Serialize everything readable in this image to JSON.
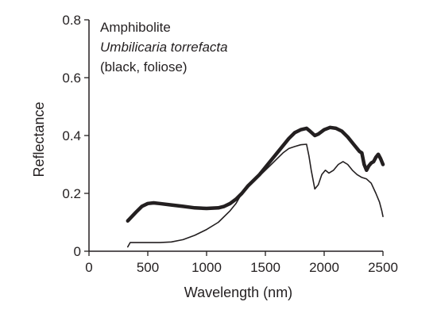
{
  "chart_data": {
    "type": "line",
    "title": "",
    "xlabel": "Wavelength (nm)",
    "ylabel": "Reflectance",
    "xlim": [
      0,
      2500
    ],
    "ylim": [
      0,
      0.8
    ],
    "xticks": [
      0,
      500,
      1000,
      1500,
      2000,
      2500
    ],
    "yticks": [
      0,
      0.2,
      0.4,
      0.6,
      0.8
    ],
    "x_tick_labels": [
      "0",
      "500",
      "1000",
      "1500",
      "2000",
      "2500"
    ],
    "y_tick_labels": [
      "0",
      "0.2",
      "0.4",
      "0.6",
      "0.8"
    ],
    "grid": false,
    "annotations": [
      {
        "text": "Amphibolite",
        "italic": false
      },
      {
        "text": "Umbilicaria torrefacta",
        "italic": true
      },
      {
        "text": "(black, foliose)",
        "italic": false
      }
    ],
    "series": [
      {
        "style": "thick",
        "points": [
          [
            330,
            0.105
          ],
          [
            400,
            0.135
          ],
          [
            450,
            0.155
          ],
          [
            500,
            0.165
          ],
          [
            550,
            0.167
          ],
          [
            600,
            0.165
          ],
          [
            700,
            0.16
          ],
          [
            800,
            0.155
          ],
          [
            900,
            0.15
          ],
          [
            1000,
            0.148
          ],
          [
            1100,
            0.15
          ],
          [
            1150,
            0.155
          ],
          [
            1200,
            0.165
          ],
          [
            1250,
            0.18
          ],
          [
            1300,
            0.2
          ],
          [
            1350,
            0.225
          ],
          [
            1400,
            0.245
          ],
          [
            1450,
            0.265
          ],
          [
            1500,
            0.29
          ],
          [
            1550,
            0.315
          ],
          [
            1600,
            0.34
          ],
          [
            1650,
            0.365
          ],
          [
            1700,
            0.39
          ],
          [
            1750,
            0.41
          ],
          [
            1800,
            0.42
          ],
          [
            1850,
            0.425
          ],
          [
            1880,
            0.415
          ],
          [
            1920,
            0.4
          ],
          [
            1950,
            0.405
          ],
          [
            2000,
            0.42
          ],
          [
            2050,
            0.428
          ],
          [
            2100,
            0.425
          ],
          [
            2150,
            0.415
          ],
          [
            2200,
            0.395
          ],
          [
            2250,
            0.37
          ],
          [
            2300,
            0.345
          ],
          [
            2320,
            0.34
          ],
          [
            2340,
            0.3
          ],
          [
            2360,
            0.28
          ],
          [
            2380,
            0.295
          ],
          [
            2400,
            0.305
          ],
          [
            2420,
            0.31
          ],
          [
            2440,
            0.325
          ],
          [
            2460,
            0.335
          ],
          [
            2480,
            0.32
          ],
          [
            2500,
            0.3
          ]
        ]
      },
      {
        "style": "thin",
        "points": [
          [
            330,
            0.015
          ],
          [
            350,
            0.03
          ],
          [
            400,
            0.03
          ],
          [
            500,
            0.03
          ],
          [
            600,
            0.03
          ],
          [
            700,
            0.032
          ],
          [
            800,
            0.04
          ],
          [
            900,
            0.055
          ],
          [
            1000,
            0.075
          ],
          [
            1100,
            0.1
          ],
          [
            1200,
            0.14
          ],
          [
            1250,
            0.165
          ],
          [
            1300,
            0.2
          ],
          [
            1350,
            0.225
          ],
          [
            1400,
            0.245
          ],
          [
            1450,
            0.26
          ],
          [
            1500,
            0.28
          ],
          [
            1550,
            0.3
          ],
          [
            1600,
            0.32
          ],
          [
            1650,
            0.34
          ],
          [
            1700,
            0.355
          ],
          [
            1750,
            0.362
          ],
          [
            1800,
            0.368
          ],
          [
            1850,
            0.37
          ],
          [
            1870,
            0.33
          ],
          [
            1890,
            0.28
          ],
          [
            1920,
            0.215
          ],
          [
            1950,
            0.23
          ],
          [
            1980,
            0.265
          ],
          [
            2010,
            0.28
          ],
          [
            2040,
            0.27
          ],
          [
            2080,
            0.28
          ],
          [
            2120,
            0.3
          ],
          [
            2160,
            0.31
          ],
          [
            2200,
            0.3
          ],
          [
            2240,
            0.28
          ],
          [
            2280,
            0.265
          ],
          [
            2320,
            0.255
          ],
          [
            2360,
            0.25
          ],
          [
            2400,
            0.235
          ],
          [
            2440,
            0.2
          ],
          [
            2470,
            0.17
          ],
          [
            2490,
            0.14
          ],
          [
            2500,
            0.12
          ]
        ]
      }
    ]
  }
}
